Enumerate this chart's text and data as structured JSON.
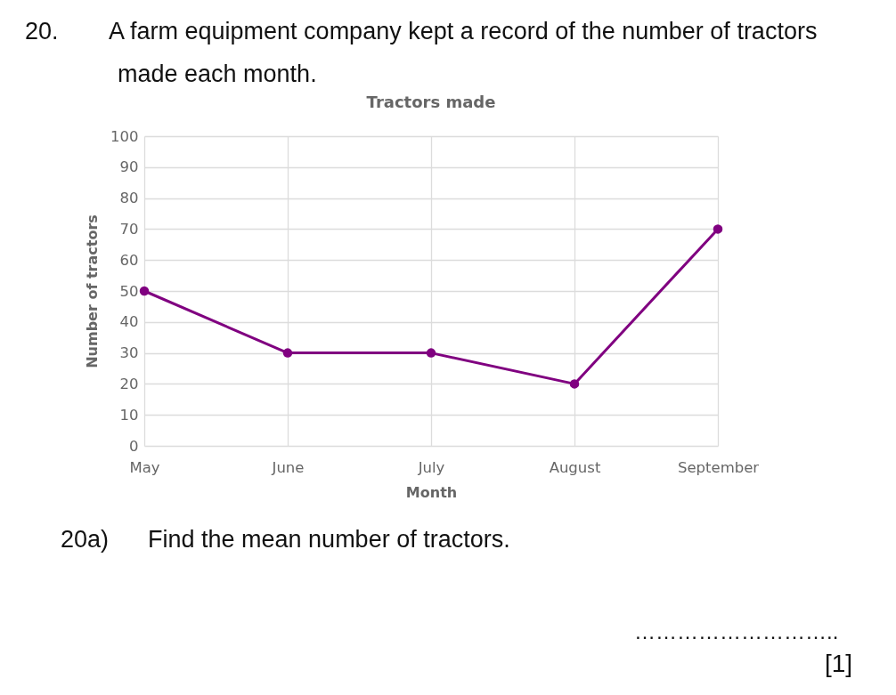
{
  "chart_data": {
    "type": "line",
    "title": "Tractors made",
    "xlabel": "Month",
    "ylabel": "Number of tractors",
    "categories": [
      "May",
      "June",
      "July",
      "August",
      "September"
    ],
    "series": [
      {
        "color": "#800080",
        "values": [
          50,
          30,
          30,
          20,
          70
        ]
      }
    ],
    "ylim": [
      0,
      100
    ],
    "yticks": [
      0,
      10,
      20,
      30,
      40,
      50,
      60,
      70,
      80,
      90,
      100
    ],
    "grid": true,
    "legend": false,
    "marker": "circle",
    "line_style": "solid",
    "annotations": [
      "20.",
      "A farm equipment company kept a record of the number of tractors made each month.",
      "20a)",
      "Find the mean number of tractors.",
      "………………………..",
      "[1]"
    ]
  }
}
